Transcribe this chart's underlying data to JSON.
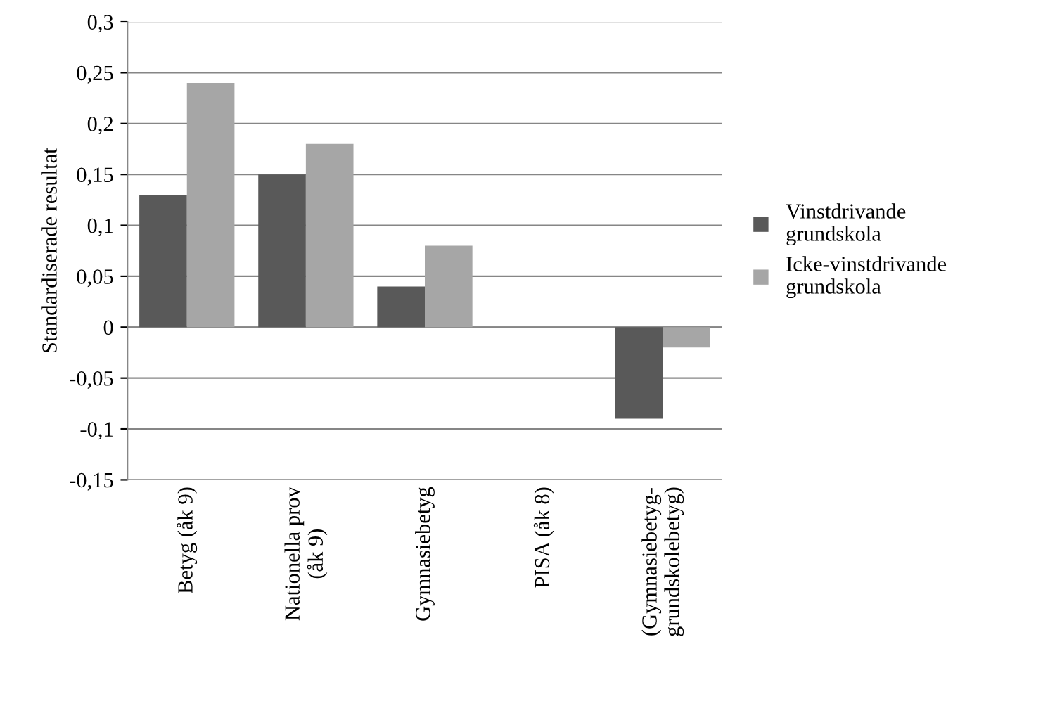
{
  "chart_data": {
    "type": "bar",
    "ylabel": "Standardiserade resultat",
    "categories": [
      "Betyg (åk 9)",
      "Nationella prov\n(åk 9)",
      "Gymnasiebetyg",
      "PISA (åk 8)",
      "(Gymnasiebetyg-\ngrundskolebetyg)"
    ],
    "series": [
      {
        "name": "Vinstdrivande\ngrundskola",
        "color": "#595959",
        "values": [
          0.13,
          0.15,
          0.04,
          0,
          -0.09
        ]
      },
      {
        "name": "Icke-vinstdrivande\ngrundskola",
        "color": "#a6a6a6",
        "values": [
          0.24,
          0.18,
          0.08,
          0,
          -0.02
        ]
      }
    ],
    "ylim": [
      -0.15,
      0.3
    ],
    "yticks": [
      {
        "value": -0.15,
        "label": "-0,15"
      },
      {
        "value": -0.1,
        "label": "-0,1"
      },
      {
        "value": -0.05,
        "label": "-0,05"
      },
      0,
      {
        "value": 0.05,
        "label": "0,05"
      },
      {
        "value": 0.1,
        "label": "0,1"
      },
      {
        "value": 0.15,
        "label": "0,15"
      },
      {
        "value": 0.2,
        "label": "0,2"
      },
      {
        "value": 0.25,
        "label": "0,25"
      },
      {
        "value": 0.3,
        "label": "0,3"
      }
    ],
    "grid": "y",
    "legend": "right"
  }
}
